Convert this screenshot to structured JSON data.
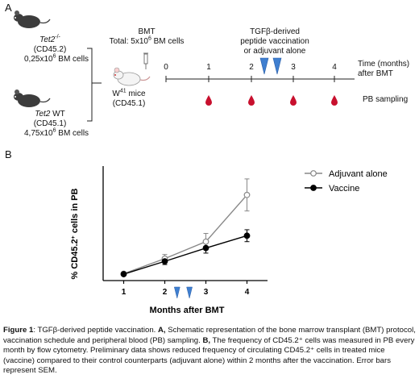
{
  "panel_a": {
    "letter": "A",
    "donor_ko": {
      "genotype": "Tet2",
      "genotype_sup": "-/-",
      "marker": "(CD45.2)",
      "cells": "0,25x10",
      "cells_sup": "6",
      "cells_suffix": " BM cells"
    },
    "donor_wt": {
      "genotype": "Tet2",
      "genotype_suffix": " WT",
      "marker": "(CD45.1)",
      "cells": "4,75x10",
      "cells_sup": "6",
      "cells_suffix": " BM cells"
    },
    "bmt": {
      "line1": "BMT",
      "line2": "Total: 5x10",
      "line2_sup": "6",
      "line2_suffix": " BM cells"
    },
    "recipient": {
      "prefix": "W",
      "prefix_sup": "41",
      "suffix": " mice",
      "marker": "(CD45.1)"
    },
    "timeline_ticks": [
      "0",
      "1",
      "2",
      "3",
      "4"
    ],
    "vaccination": {
      "line1": "TGFβ-derived",
      "line2": "peptide vaccination",
      "line3": "or adjuvant alone"
    },
    "time_label": {
      "line1": "Time (months)",
      "line2": "after BMT"
    },
    "pb_sampling": "PB sampling"
  },
  "panel_b": {
    "letter": "B"
  },
  "chart_data": {
    "type": "line",
    "x": [
      1,
      2,
      3,
      4
    ],
    "xticks": [
      "1",
      "2",
      "3",
      "4"
    ],
    "xlabel": "Months after BMT",
    "ylabel": "% CD45.2+ cells in PB",
    "ylim": [
      0,
      25
    ],
    "grid": false,
    "legend_position": "top-right",
    "series": [
      {
        "name": "Adjuvant alone",
        "values": [
          1.5,
          4.8,
          8.5,
          18.7
        ],
        "errors": [
          0.3,
          0.9,
          1.8,
          3.5
        ],
        "color": "#888888",
        "marker": "open-circle"
      },
      {
        "name": "Vaccine",
        "values": [
          1.4,
          4.2,
          7.1,
          9.8
        ],
        "errors": [
          0.3,
          0.7,
          1.1,
          1.3
        ],
        "color": "#000000",
        "marker": "filled-circle"
      }
    ],
    "annotations": [
      {
        "type": "vaccination-marker",
        "x": 2.3
      },
      {
        "type": "vaccination-marker",
        "x": 2.6
      }
    ]
  },
  "colors": {
    "vaccine_marker": "#3f7fd0",
    "blood_drop": "#c8102e",
    "adjuvant": "#888888",
    "vaccine": "#000000"
  },
  "caption": {
    "fig": "Figure 1",
    "title": ": TGFβ-derived peptide vaccination. ",
    "a_label": "A,",
    "a_text": " Schematic representation of the bone marrow transplant (BMT) protocol, vaccination schedule and peripheral blood (PB) sampling. ",
    "b_label": "B,",
    "b_text": " The frequency of CD45.2⁺ cells was measured in PB every month by flow cytometry. Preliminary data shows reduced frequency of circulating CD45.2⁺ cells in treated mice (vaccine) compared to their control counterparts (adjuvant alone) within 2 months after the vaccination. Error bars represent SEM."
  }
}
